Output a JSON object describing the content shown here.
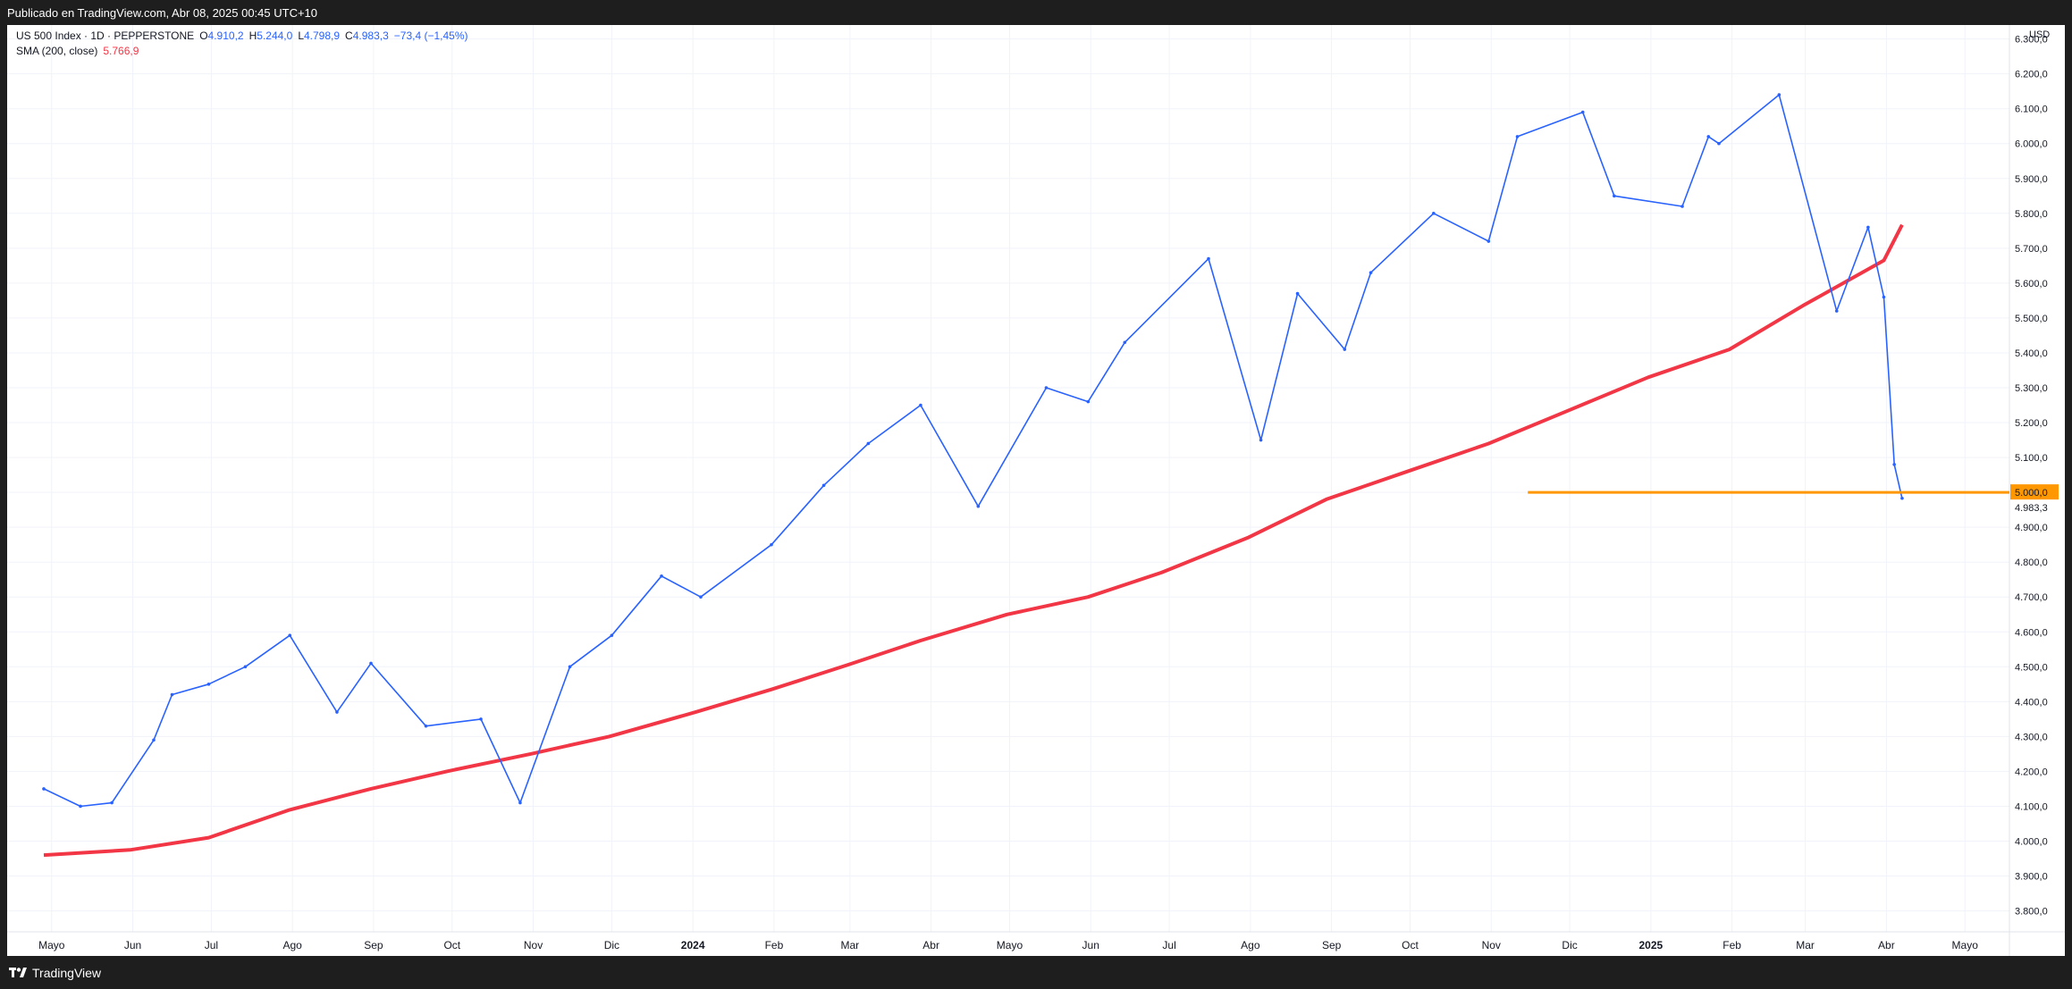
{
  "header": {
    "published_text": "Publicado en TradingView.com, Abr 08, 2025 00:45 UTC+10"
  },
  "legend": {
    "symbol": "US 500 Index · 1D · PEPPERSTONE",
    "o_label": "O",
    "o_value": "4.910,2",
    "h_label": "H",
    "h_value": "5.244,0",
    "l_label": "L",
    "l_value": "4.798,9",
    "c_label": "C",
    "c_value": "4.983,3",
    "change": "−73,4 (−1,45%)",
    "sma_label": "SMA (200, close)",
    "sma_value": "5.766,9"
  },
  "price_axis": {
    "currency": "USD",
    "ticks": [
      "6.300,0",
      "6.200,0",
      "6.100,0",
      "6.000,0",
      "5.900,0",
      "5.800,0",
      "5.700,0",
      "5.600,0",
      "5.500,0",
      "5.400,0",
      "5.300,0",
      "5.200,0",
      "5.100,0",
      "5.000,0",
      "4.900,0",
      "4.800,0",
      "4.700,0",
      "4.600,0",
      "4.500,0",
      "4.400,0",
      "4.300,0",
      "4.200,0",
      "4.100,0",
      "4.000,0",
      "3.900,0",
      "3.800,0"
    ],
    "tick_values": [
      6300,
      6200,
      6100,
      6000,
      5900,
      5800,
      5700,
      5600,
      5500,
      5400,
      5300,
      5200,
      5100,
      5000,
      4900,
      4800,
      4700,
      4600,
      4500,
      4400,
      4300,
      4200,
      4100,
      4000,
      3900,
      3800
    ],
    "last_price_label": "4.983,3",
    "last_price_value": 4983.3,
    "level_label": "5.000,0",
    "level_value": 5000
  },
  "time_axis": {
    "labels": [
      "Mayo",
      "Jun",
      "Jul",
      "Ago",
      "Sep",
      "Oct",
      "Nov",
      "Dic",
      "2024",
      "Feb",
      "Mar",
      "Abr",
      "Mayo",
      "Jun",
      "Jul",
      "Ago",
      "Sep",
      "Oct",
      "Nov",
      "Dic",
      "2025",
      "Feb",
      "Mar",
      "Abr",
      "Mayo"
    ],
    "bold": [
      false,
      false,
      false,
      false,
      false,
      false,
      false,
      false,
      true,
      false,
      false,
      false,
      false,
      false,
      false,
      false,
      false,
      false,
      false,
      false,
      true,
      false,
      false,
      false,
      false
    ]
  },
  "footer": {
    "brand": "TradingView"
  },
  "colors": {
    "price": "#2962ff",
    "sma": "#f23645",
    "level": "#ff9800",
    "grid": "#f0f3fa",
    "axis_text": "#131722"
  },
  "chart_data": {
    "type": "line",
    "title": "",
    "xlabel": "",
    "ylabel": "",
    "ylim": [
      3740,
      6340
    ],
    "grid": true,
    "series": [
      {
        "name": "US 500 Index · 1D · PEPPERSTONE",
        "role": "price",
        "x": [
          "2023-04-28",
          "2023-05-12",
          "2023-05-24",
          "2023-06-09",
          "2023-06-16",
          "2023-06-30",
          "2023-07-14",
          "2023-07-31",
          "2023-08-18",
          "2023-08-31",
          "2023-09-21",
          "2023-10-12",
          "2023-10-27",
          "2023-11-15",
          "2023-12-01",
          "2023-12-20",
          "2024-01-04",
          "2024-01-31",
          "2024-02-20",
          "2024-03-08",
          "2024-03-28",
          "2024-04-19",
          "2024-05-15",
          "2024-05-31",
          "2024-06-14",
          "2024-07-16",
          "2024-08-05",
          "2024-08-19",
          "2024-09-06",
          "2024-09-16",
          "2024-10-10",
          "2024-10-31",
          "2024-11-11",
          "2024-12-06",
          "2024-12-18",
          "2025-01-13",
          "2025-01-23",
          "2025-01-27",
          "2025-02-19",
          "2025-03-13",
          "2025-03-25",
          "2025-03-31",
          "2025-04-04",
          "2025-04-07"
        ],
        "values": [
          4150,
          4100,
          4110,
          4290,
          4420,
          4450,
          4500,
          4590,
          4370,
          4510,
          4330,
          4350,
          4110,
          4500,
          4590,
          4760,
          4700,
          4850,
          5020,
          5140,
          5250,
          4960,
          5300,
          5260,
          5430,
          5670,
          5150,
          5570,
          5410,
          5630,
          5800,
          5720,
          6020,
          6090,
          5850,
          5820,
          6020,
          6000,
          6140,
          5520,
          5760,
          5560,
          5080,
          4983
        ]
      },
      {
        "name": "SMA (200, close)",
        "role": "sma",
        "x": [
          "2023-04-28",
          "2023-05-31",
          "2023-06-30",
          "2023-07-31",
          "2023-08-31",
          "2023-09-29",
          "2023-10-31",
          "2023-11-30",
          "2024-01-02",
          "2024-01-31",
          "2024-02-29",
          "2024-03-28",
          "2024-04-30",
          "2024-05-31",
          "2024-06-28",
          "2024-07-31",
          "2024-08-30",
          "2024-09-30",
          "2024-10-31",
          "2024-11-29",
          "2024-12-31",
          "2025-01-31",
          "2025-02-28",
          "2025-03-31",
          "2025-04-07"
        ],
        "values": [
          3960,
          3975,
          4010,
          4090,
          4150,
          4200,
          4250,
          4300,
          4370,
          4435,
          4505,
          4575,
          4650,
          4700,
          4770,
          4870,
          4980,
          5060,
          5140,
          5230,
          5330,
          5410,
          5535,
          5665,
          5767
        ]
      }
    ],
    "hline": {
      "value": 5000,
      "from": "2024-11-15"
    }
  }
}
